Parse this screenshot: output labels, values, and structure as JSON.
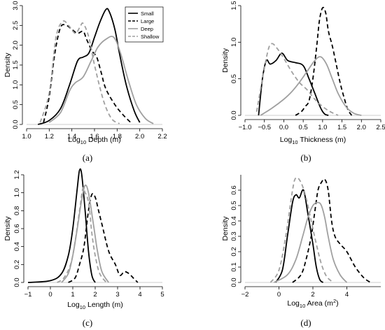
{
  "legend": [
    {
      "name": "Small",
      "color": "#000000",
      "dash": "solid"
    },
    {
      "name": "Large",
      "color": "#000000",
      "dash": "dashed"
    },
    {
      "name": "Deep",
      "color": "#a0a0a0",
      "dash": "solid"
    },
    {
      "name": "Shallow",
      "color": "#a0a0a0",
      "dash": "dashed"
    }
  ],
  "colors": {
    "dark": "#000000",
    "light": "#a0a0a0",
    "axis": "#000000",
    "baseline": "#bdbdbd"
  },
  "chart_data": [
    {
      "type": "line",
      "panel": "a",
      "caption": "(a)",
      "xlabel": "Log10 Depth (m)",
      "ylabel": "Density",
      "xlim": [
        1.0,
        2.2
      ],
      "ylim": [
        0,
        3.0
      ],
      "xticks": [
        1.0,
        1.2,
        1.4,
        1.6,
        1.8,
        2.0,
        2.2
      ],
      "yticks": [
        0.0,
        0.5,
        1.0,
        1.5,
        2.0,
        2.5,
        3.0
      ],
      "legend_position": "top-right",
      "series": [
        {
          "name": "Small",
          "x": [
            1.1,
            1.2,
            1.3,
            1.38,
            1.45,
            1.5,
            1.55,
            1.6,
            1.65,
            1.7,
            1.73,
            1.78,
            1.82,
            1.88,
            1.95,
            2.0
          ],
          "y": [
            0,
            0.1,
            0.4,
            1.0,
            1.6,
            1.7,
            1.8,
            2.2,
            2.6,
            2.9,
            2.85,
            2.4,
            1.8,
            1.0,
            0.35,
            0.05
          ]
        },
        {
          "name": "Large",
          "x": [
            1.15,
            1.2,
            1.25,
            1.3,
            1.35,
            1.4,
            1.45,
            1.5,
            1.53,
            1.58,
            1.62,
            1.66,
            1.7,
            1.78,
            1.85,
            1.92
          ],
          "y": [
            0.05,
            0.7,
            1.8,
            2.45,
            2.5,
            2.4,
            2.3,
            2.35,
            2.15,
            1.85,
            1.7,
            1.3,
            0.9,
            0.5,
            0.25,
            0.05
          ]
        },
        {
          "name": "Deep",
          "x": [
            1.2,
            1.3,
            1.38,
            1.43,
            1.5,
            1.57,
            1.63,
            1.7,
            1.77,
            1.83,
            1.9,
            1.97,
            2.05,
            2.12
          ],
          "y": [
            0.05,
            0.3,
            0.85,
            1.05,
            1.2,
            1.6,
            1.95,
            2.15,
            2.2,
            1.8,
            1.1,
            0.5,
            0.15,
            0.02
          ]
        },
        {
          "name": "Shallow",
          "x": [
            1.12,
            1.2,
            1.26,
            1.32,
            1.37,
            1.43,
            1.47,
            1.5,
            1.55,
            1.6,
            1.68,
            1.75,
            1.82
          ],
          "y": [
            0.05,
            0.8,
            2.2,
            2.6,
            2.5,
            2.3,
            2.45,
            2.55,
            2.2,
            1.5,
            0.6,
            0.15,
            0.02
          ]
        }
      ]
    },
    {
      "type": "line",
      "panel": "b",
      "caption": "(b)",
      "xlabel": "Log10 Thickness (m)",
      "ylabel": "",
      "xlim": [
        -1.0,
        2.5
      ],
      "ylim": [
        0,
        1.5
      ],
      "xticks": [
        -1.0,
        -0.5,
        0.0,
        0.5,
        1.0,
        1.5,
        2.0,
        2.5
      ],
      "yticks": [
        0.0,
        0.5,
        1.0,
        1.5
      ],
      "series": [
        {
          "name": "Small",
          "x": [
            -0.65,
            -0.55,
            -0.45,
            -0.35,
            -0.2,
            -0.05,
            0.1,
            0.3,
            0.5,
            0.65,
            0.8,
            0.95,
            1.05,
            1.15
          ],
          "y": [
            0.0,
            0.5,
            0.75,
            0.7,
            0.75,
            0.85,
            0.75,
            0.72,
            0.68,
            0.5,
            0.3,
            0.1,
            0.02,
            0.0
          ]
        },
        {
          "name": "Large",
          "x": [
            0.3,
            0.45,
            0.55,
            0.65,
            0.75,
            0.85,
            0.92,
            1.0,
            1.08,
            1.15,
            1.25,
            1.35,
            1.45,
            1.55,
            1.65,
            1.75
          ],
          "y": [
            0.0,
            0.05,
            0.12,
            0.2,
            0.5,
            0.95,
            1.3,
            1.47,
            1.4,
            1.15,
            0.95,
            0.7,
            0.45,
            0.25,
            0.08,
            0.0
          ]
        },
        {
          "name": "Deep",
          "x": [
            -0.6,
            -0.3,
            0.0,
            0.2,
            0.4,
            0.6,
            0.8,
            0.95,
            1.1,
            1.25,
            1.4,
            1.6,
            1.8,
            2.0
          ],
          "y": [
            0.0,
            0.1,
            0.22,
            0.32,
            0.45,
            0.6,
            0.75,
            0.8,
            0.7,
            0.5,
            0.3,
            0.12,
            0.03,
            0.0
          ]
        },
        {
          "name": "Shallow",
          "x": [
            -0.7,
            -0.55,
            -0.4,
            -0.3,
            -0.15,
            0.0,
            0.2,
            0.4,
            0.6,
            0.8,
            1.0,
            1.2,
            1.4
          ],
          "y": [
            0.05,
            0.5,
            0.9,
            0.98,
            0.9,
            0.78,
            0.6,
            0.45,
            0.35,
            0.22,
            0.12,
            0.05,
            0.0
          ]
        }
      ]
    },
    {
      "type": "line",
      "panel": "c",
      "caption": "(c)",
      "xlabel": "Log10 Length (m)",
      "ylabel": "Density",
      "xlim": [
        -1,
        5
      ],
      "ylim": [
        0,
        1.2
      ],
      "xticks": [
        -1,
        0,
        1,
        2,
        3,
        4,
        5
      ],
      "yticks": [
        0.0,
        0.2,
        0.4,
        0.6,
        0.8,
        1.0,
        1.2
      ],
      "series": [
        {
          "name": "Small",
          "x": [
            -1.0,
            0.0,
            0.5,
            0.8,
            1.0,
            1.2,
            1.3,
            1.4,
            1.55,
            1.7,
            1.85,
            2.0
          ],
          "y": [
            0.0,
            0.02,
            0.1,
            0.3,
            0.6,
            1.05,
            1.25,
            1.2,
            0.8,
            0.35,
            0.08,
            0.0
          ]
        },
        {
          "name": "Large",
          "x": [
            0.8,
            1.1,
            1.3,
            1.5,
            1.7,
            1.85,
            2.0,
            2.15,
            2.3,
            2.6,
            2.9,
            3.1,
            3.3,
            3.5,
            3.7,
            3.9
          ],
          "y": [
            0.0,
            0.05,
            0.2,
            0.4,
            0.8,
            0.98,
            0.95,
            0.8,
            0.65,
            0.35,
            0.2,
            0.08,
            0.12,
            0.1,
            0.05,
            0.0
          ]
        },
        {
          "name": "Deep",
          "x": [
            0.5,
            0.8,
            1.0,
            1.2,
            1.35,
            1.5,
            1.6,
            1.7,
            1.8,
            1.95,
            2.1,
            2.3,
            2.6
          ],
          "y": [
            0.0,
            0.1,
            0.3,
            0.6,
            0.85,
            1.05,
            1.08,
            1.0,
            0.85,
            0.6,
            0.35,
            0.12,
            0.0
          ]
        },
        {
          "name": "Shallow",
          "x": [
            0.3,
            0.6,
            0.9,
            1.1,
            1.3,
            1.45,
            1.55,
            1.65,
            1.75,
            1.85,
            2.0,
            2.2,
            2.5
          ],
          "y": [
            0.0,
            0.05,
            0.2,
            0.45,
            0.8,
            1.05,
            1.0,
            0.95,
            0.8,
            0.55,
            0.3,
            0.1,
            0.0
          ]
        }
      ]
    },
    {
      "type": "line",
      "panel": "d",
      "caption": "(d)",
      "xlabel": "Log10 Area (m2)",
      "ylabel": "Density",
      "xlim": [
        -2,
        6
      ],
      "ylim": [
        0,
        0.7
      ],
      "xticks": [
        -2,
        0,
        2,
        4
      ],
      "yticks": [
        0.0,
        0.1,
        0.2,
        0.3,
        0.4,
        0.5,
        0.6
      ],
      "series": [
        {
          "name": "Small",
          "x": [
            -0.2,
            0.2,
            0.5,
            0.8,
            1.0,
            1.2,
            1.45,
            1.7,
            2.0,
            2.2,
            2.4,
            2.6
          ],
          "y": [
            0.0,
            0.08,
            0.3,
            0.52,
            0.57,
            0.55,
            0.6,
            0.45,
            0.25,
            0.1,
            0.02,
            0.0
          ]
        },
        {
          "name": "Large",
          "x": [
            0.8,
            1.3,
            1.6,
            1.9,
            2.1,
            2.3,
            2.5,
            2.7,
            2.9,
            3.1,
            3.3,
            3.6,
            4.0,
            4.5,
            5.0,
            5.4
          ],
          "y": [
            0.0,
            0.05,
            0.15,
            0.3,
            0.45,
            0.6,
            0.65,
            0.67,
            0.6,
            0.4,
            0.3,
            0.25,
            0.2,
            0.1,
            0.03,
            0.0
          ]
        },
        {
          "name": "Deep",
          "x": [
            -0.3,
            0.5,
            1.0,
            1.4,
            1.7,
            2.0,
            2.3,
            2.5,
            2.7,
            2.9,
            3.2,
            3.6,
            4.0
          ],
          "y": [
            0.0,
            0.05,
            0.15,
            0.3,
            0.42,
            0.5,
            0.52,
            0.5,
            0.42,
            0.3,
            0.15,
            0.05,
            0.0
          ]
        },
        {
          "name": "Shallow",
          "x": [
            -0.5,
            0.0,
            0.4,
            0.8,
            1.0,
            1.3,
            1.6,
            1.9,
            2.2,
            2.5,
            2.8,
            3.2
          ],
          "y": [
            0.0,
            0.08,
            0.3,
            0.6,
            0.68,
            0.65,
            0.55,
            0.4,
            0.25,
            0.12,
            0.04,
            0.0
          ]
        }
      ]
    }
  ]
}
